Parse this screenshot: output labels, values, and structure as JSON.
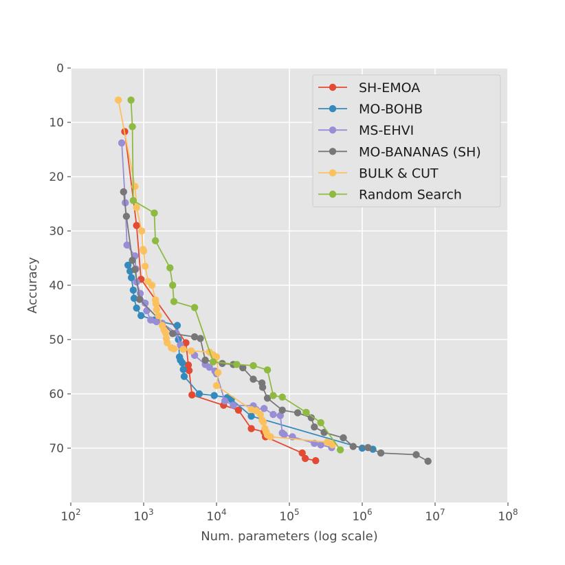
{
  "chart_data": {
    "type": "line",
    "xlabel": "Num. parameters (log scale)",
    "ylabel": "Accuracy",
    "xscale": "log",
    "xlim": [
      100,
      100000000
    ],
    "ylim": [
      80,
      0
    ],
    "y_inverted": true,
    "x_ticks": [
      {
        "value": 100,
        "base": "10",
        "exp": "2"
      },
      {
        "value": 1000,
        "base": "10",
        "exp": "3"
      },
      {
        "value": 10000,
        "base": "10",
        "exp": "4"
      },
      {
        "value": 100000,
        "base": "10",
        "exp": "5"
      },
      {
        "value": 1000000,
        "base": "10",
        "exp": "6"
      },
      {
        "value": 10000000,
        "base": "10",
        "exp": "7"
      },
      {
        "value": 100000000,
        "base": "10",
        "exp": "8"
      }
    ],
    "y_ticks": [
      {
        "value": 0,
        "label": "0"
      },
      {
        "value": 10,
        "label": "10"
      },
      {
        "value": 20,
        "label": "20"
      },
      {
        "value": 30,
        "label": "30"
      },
      {
        "value": 40,
        "label": "40"
      },
      {
        "value": 50,
        "label": "50"
      },
      {
        "value": 60,
        "label": "60"
      },
      {
        "value": 70,
        "label": "70"
      }
    ],
    "grid": true,
    "legend_position": "top-right",
    "background": "#e5e5e5",
    "series": [
      {
        "name": "SH-EMOA",
        "color": "#e24a33",
        "points": [
          [
            550,
            11.7
          ],
          [
            800,
            29
          ],
          [
            920,
            38.9
          ],
          [
            3800,
            50.6
          ],
          [
            4100,
            54.7
          ],
          [
            4200,
            55.7
          ],
          [
            4600,
            60.2
          ],
          [
            12500,
            62.1
          ],
          [
            20000,
            63
          ],
          [
            30000,
            66.4
          ],
          [
            45000,
            67
          ],
          [
            47000,
            67.9
          ],
          [
            150000,
            70.9
          ],
          [
            165000,
            71.9
          ],
          [
            230000,
            72.3
          ]
        ]
      },
      {
        "name": "MO-BOHB",
        "color": "#348abd",
        "points": [
          [
            610,
            36.3
          ],
          [
            650,
            37.4
          ],
          [
            680,
            38.6
          ],
          [
            720,
            40.9
          ],
          [
            740,
            42.4
          ],
          [
            800,
            44.2
          ],
          [
            920,
            45.6
          ],
          [
            1400,
            46.4
          ],
          [
            2900,
            47.4
          ],
          [
            3000,
            50
          ],
          [
            3100,
            53.2
          ],
          [
            3200,
            53.8
          ],
          [
            3400,
            54.3
          ],
          [
            3500,
            55.5
          ],
          [
            3600,
            56.8
          ],
          [
            5800,
            60
          ],
          [
            9300,
            60.3
          ],
          [
            14000,
            60.7
          ],
          [
            16000,
            61
          ],
          [
            30000,
            64.1
          ],
          [
            1000000,
            70
          ],
          [
            1400000,
            70.2
          ]
        ]
      },
      {
        "name": "MS-EHVI",
        "color": "#988ed5",
        "points": [
          [
            500,
            13.8
          ],
          [
            560,
            24.8
          ],
          [
            590,
            32.6
          ],
          [
            760,
            34.6
          ],
          [
            780,
            37
          ],
          [
            800,
            39.4
          ],
          [
            900,
            41.5
          ],
          [
            1050,
            43.3
          ],
          [
            1100,
            44.7
          ],
          [
            1250,
            46.4
          ],
          [
            1500,
            46.7
          ],
          [
            1800,
            47
          ],
          [
            2800,
            48.8
          ],
          [
            3200,
            51
          ],
          [
            5000,
            52.9
          ],
          [
            7000,
            54.6
          ],
          [
            8000,
            55.1
          ],
          [
            9500,
            55.8
          ],
          [
            10000,
            56.3
          ],
          [
            13000,
            61.3
          ],
          [
            17000,
            62.1
          ],
          [
            32000,
            62.2
          ],
          [
            35000,
            62.9
          ],
          [
            45000,
            62.7
          ],
          [
            60000,
            63.8
          ],
          [
            75000,
            64
          ],
          [
            80000,
            67.2
          ],
          [
            85000,
            67.5
          ],
          [
            110000,
            67.9
          ],
          [
            220000,
            69.1
          ],
          [
            270000,
            69.4
          ],
          [
            380000,
            69.9
          ]
        ]
      },
      {
        "name": "MO-BANANAS (SH)",
        "color": "#777777",
        "points": [
          [
            530,
            22.8
          ],
          [
            580,
            27.3
          ],
          [
            700,
            35.4
          ],
          [
            760,
            37.1
          ],
          [
            880,
            42.6
          ],
          [
            2500,
            48.9
          ],
          [
            5000,
            49.5
          ],
          [
            6000,
            49.8
          ],
          [
            7000,
            53.8
          ],
          [
            12000,
            54.4
          ],
          [
            17000,
            54.6
          ],
          [
            23000,
            55.2
          ],
          [
            32000,
            57.3
          ],
          [
            42000,
            58
          ],
          [
            43000,
            58.8
          ],
          [
            50000,
            60.8
          ],
          [
            80000,
            63
          ],
          [
            130000,
            63.5
          ],
          [
            200000,
            64.4
          ],
          [
            220000,
            66.1
          ],
          [
            300000,
            67.1
          ],
          [
            550000,
            68.1
          ],
          [
            750000,
            69.7
          ],
          [
            1200000,
            69.9
          ],
          [
            1800000,
            70.9
          ],
          [
            5500000,
            71.2
          ],
          [
            8000000,
            72.4
          ]
        ]
      },
      {
        "name": "BULK & CUT",
        "color": "#fbc15e",
        "points": [
          [
            450,
            5.9
          ],
          [
            760,
            21.8
          ],
          [
            800,
            25.7
          ],
          [
            940,
            30
          ],
          [
            980,
            33.4
          ],
          [
            1000,
            33.7
          ],
          [
            1050,
            36.5
          ],
          [
            1150,
            39.3
          ],
          [
            1300,
            40
          ],
          [
            1450,
            42.7
          ],
          [
            1480,
            43.4
          ],
          [
            1500,
            44.5
          ],
          [
            1600,
            45.6
          ],
          [
            1800,
            47.4
          ],
          [
            1900,
            48.2
          ],
          [
            2000,
            48.8
          ],
          [
            2050,
            49.8
          ],
          [
            2100,
            50.6
          ],
          [
            2400,
            51.5
          ],
          [
            2600,
            51.7
          ],
          [
            3500,
            51.8
          ],
          [
            4500,
            52.1
          ],
          [
            8000,
            52.3
          ],
          [
            9000,
            52.8
          ],
          [
            10000,
            53.2
          ],
          [
            10500,
            56.1
          ],
          [
            10000,
            58.5
          ],
          [
            30000,
            62.9
          ],
          [
            35000,
            63.1
          ],
          [
            40000,
            63.8
          ],
          [
            42000,
            64.8
          ],
          [
            44000,
            65.2
          ],
          [
            46000,
            66.4
          ],
          [
            48000,
            67
          ],
          [
            50000,
            67.6
          ],
          [
            55000,
            67.9
          ],
          [
            330000,
            68.9
          ],
          [
            380000,
            69.2
          ],
          [
            390000,
            69.4
          ]
        ]
      },
      {
        "name": "Random Search",
        "color": "#8eba42",
        "points": [
          [
            670,
            5.9
          ],
          [
            700,
            10.8
          ],
          [
            720,
            24.4
          ],
          [
            1400,
            26.7
          ],
          [
            1450,
            31.8
          ],
          [
            2300,
            36.8
          ],
          [
            2500,
            40
          ],
          [
            2600,
            43
          ],
          [
            5000,
            44.1
          ],
          [
            9000,
            54.1
          ],
          [
            19000,
            54.6
          ],
          [
            32000,
            54.8
          ],
          [
            50000,
            55.6
          ],
          [
            60000,
            60.3
          ],
          [
            80000,
            60.6
          ],
          [
            170000,
            63.4
          ],
          [
            270000,
            65.3
          ],
          [
            500000,
            70.3
          ]
        ]
      }
    ]
  }
}
